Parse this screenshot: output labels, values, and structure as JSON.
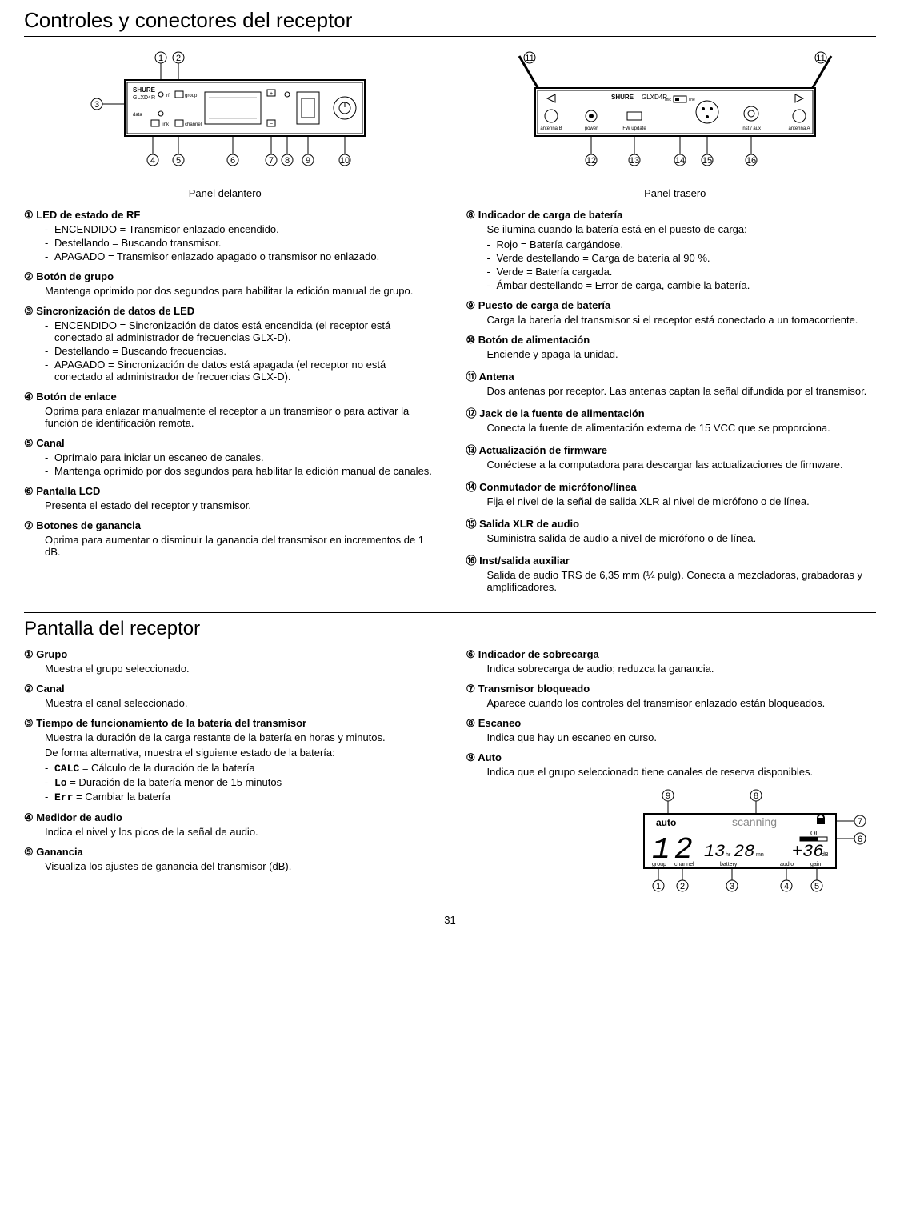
{
  "title1": "Controles y conectores del receptor",
  "title2": "Pantalla del receptor",
  "front_caption": "Panel delantero",
  "rear_caption": "Panel trasero",
  "page_number": "31",
  "sec1_left": [
    {
      "num": "①",
      "title": "LED de estado de RF",
      "type": "list",
      "items": [
        "ENCENDIDO = Transmisor enlazado encendido.",
        "Destellando = Buscando transmisor.",
        "APAGADO = Transmisor enlazado apagado o transmisor no enlazado."
      ]
    },
    {
      "num": "②",
      "title": "Botón de grupo",
      "type": "para",
      "text": "Mantenga oprimido por dos segundos para habilitar la edición manual de grupo."
    },
    {
      "num": "③",
      "title": "Sincronización de datos de LED",
      "type": "list",
      "items": [
        "ENCENDIDO = Sincronización de datos está encendida (el receptor está conectado al administrador de frecuencias GLX-D).",
        "Destellando = Buscando frecuencias.",
        "APAGADO = Sincronización de datos está apagada (el receptor no está conectado al administrador de frecuencias GLX-D)."
      ]
    },
    {
      "num": "④",
      "title": "Botón de enlace",
      "type": "para",
      "text": "Oprima para enlazar manualmente el receptor a un transmisor o para activar la función de identificación remota."
    },
    {
      "num": "⑤",
      "title": "Canal",
      "type": "list",
      "items": [
        "Oprímalo para iniciar un escaneo de canales.",
        "Mantenga oprimido por dos segundos para habilitar la edición manual de canales."
      ]
    },
    {
      "num": "⑥",
      "title": "Pantalla LCD",
      "type": "para",
      "text": "Presenta el estado del receptor y transmisor."
    },
    {
      "num": "⑦",
      "title": "Botones de ganancia",
      "type": "para",
      "text": "Oprima para aumentar o disminuir la ganancia del transmisor en incrementos de 1 dB."
    }
  ],
  "sec1_right": [
    {
      "num": "⑧",
      "title": "Indicador de carga de batería",
      "type": "paralist",
      "text": "Se ilumina cuando la batería está en el puesto de carga:",
      "items": [
        "Rojo = Batería cargándose.",
        "Verde destellando = Carga de batería al 90 %.",
        "Verde = Batería cargada.",
        "Ámbar destellando = Error de carga, cambie la batería."
      ]
    },
    {
      "num": "⑨",
      "title": "Puesto de carga de batería",
      "type": "para",
      "text": "Carga la batería del transmisor si el receptor está conectado a un tomacorriente."
    },
    {
      "num": "⑩",
      "title": "Botón de alimentación",
      "type": "para",
      "text": "Enciende y apaga la unidad."
    },
    {
      "num": "⑪",
      "title": "Antena",
      "type": "para",
      "text": "Dos antenas por receptor. Las antenas captan la señal difundida por el transmisor."
    },
    {
      "num": "⑫",
      "title": "Jack de la fuente de alimentación",
      "type": "para",
      "text": "Conecta la fuente de alimentación externa de 15 VCC que se proporciona."
    },
    {
      "num": "⑬",
      "title": "Actualización de firmware",
      "type": "para",
      "text": "Conéctese a la computadora para descargar las actualizaciones de firmware."
    },
    {
      "num": "⑭",
      "title": "Conmutador de micrófono/línea",
      "type": "para",
      "text": "Fija el nivel de la señal de salida XLR al nivel de micrófono o de línea."
    },
    {
      "num": "⑮",
      "title": "Salida XLR de audio",
      "type": "para",
      "text": "Suministra salida de audio a nivel de micrófono o de línea."
    },
    {
      "num": "⑯",
      "title": "Inst/salida auxiliar",
      "type": "para",
      "text": "Salida de audio TRS de 6,35 mm (¼ pulg). Conecta a mezcladoras, grabadoras y amplificadores."
    }
  ],
  "sec2_left": [
    {
      "num": "①",
      "title": "Grupo",
      "type": "para",
      "text": "Muestra el grupo seleccionado."
    },
    {
      "num": "②",
      "title": "Canal",
      "type": "para",
      "text": "Muestra el canal seleccionado."
    },
    {
      "num": "③",
      "title": "Tiempo de funcionamiento de la batería del transmisor",
      "type": "battery",
      "text1": "Muestra la duración de la carga restante de la batería en horas y minutos.",
      "text2": "De forma alternativa, muestra el siguiente estado de la batería:",
      "items": [
        {
          "code": "CALC",
          "desc": " = Cálculo de la duración de la batería"
        },
        {
          "code": "Lo",
          "desc": " = Duración de la batería menor de 15 minutos"
        },
        {
          "code": "Err",
          "desc": " = Cambiar la batería"
        }
      ]
    },
    {
      "num": "④",
      "title": "Medidor de audio",
      "type": "para",
      "text": "Indica el nivel y los picos de la señal de audio."
    },
    {
      "num": "⑤",
      "title": "Ganancia",
      "type": "para",
      "text": "Visualiza los ajustes de ganancia del transmisor (dB)."
    }
  ],
  "sec2_right": [
    {
      "num": "⑥",
      "title": "Indicador de sobrecarga",
      "type": "para",
      "text": "Indica sobrecarga de audio; reduzca la ganancia."
    },
    {
      "num": "⑦",
      "title": "Transmisor bloqueado",
      "type": "para",
      "text": "Aparece cuando los controles del transmisor enlazado están bloqueados."
    },
    {
      "num": "⑧",
      "title": "Escaneo",
      "type": "para",
      "text": "Indica que hay un escaneo en curso."
    },
    {
      "num": "⑨",
      "title": "Auto",
      "type": "para",
      "text": "Indica que el grupo seleccionado tiene canales de reserva disponibles."
    }
  ],
  "front_device": {
    "brand": "SHURE",
    "model": "GLXD4R",
    "labels": {
      "rf": "rf",
      "group": "group",
      "data": "data",
      "link": "link",
      "channel": "channel"
    }
  },
  "rear_device": {
    "brand": "SHURE",
    "model": "GLXD4R",
    "labels": {
      "antB": "antenna B",
      "power": "power",
      "fw": "FW update",
      "mic": "mic",
      "line": "line",
      "inst": "inst / aux",
      "antA": "antenna A"
    }
  },
  "lcd": {
    "auto": "auto",
    "scanning": "scanning",
    "group": "group",
    "channel": "channel",
    "battery": "battery",
    "audio": "audio",
    "gain": "gain",
    "ol": "OL",
    "hr": "hr",
    "mn": "mn",
    "db": "dB",
    "g": "1",
    "c": "2",
    "bh": "13",
    "bm": "28",
    "gv": "+36"
  }
}
